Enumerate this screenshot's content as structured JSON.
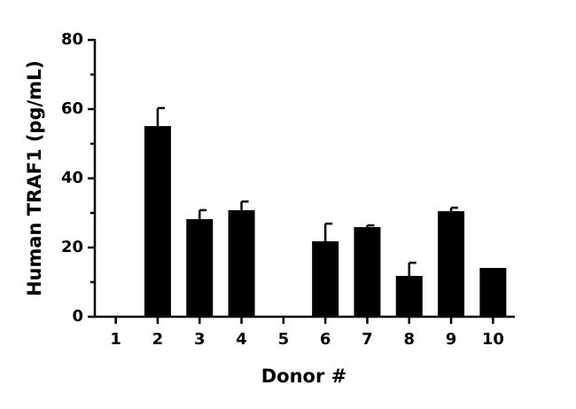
{
  "chart_data": {
    "type": "bar",
    "x_label": "Donor #",
    "y_label": "Human TRAF1 (pg/mL)",
    "categories": [
      "1",
      "2",
      "3",
      "4",
      "5",
      "6",
      "7",
      "8",
      "9",
      "10"
    ],
    "values": [
      null,
      55.1,
      28.2,
      30.8,
      null,
      21.8,
      25.9,
      11.8,
      30.5,
      14.1
    ],
    "errors": [
      null,
      5.2,
      2.6,
      2.5,
      null,
      5.1,
      0.5,
      3.8,
      1.0,
      null
    ],
    "color": "#000000",
    "ylim": [
      0,
      80
    ],
    "yticks": [
      0,
      20,
      40,
      60,
      80
    ],
    "minor_yticks": [
      10,
      30,
      50,
      70
    ],
    "grid": false
  }
}
